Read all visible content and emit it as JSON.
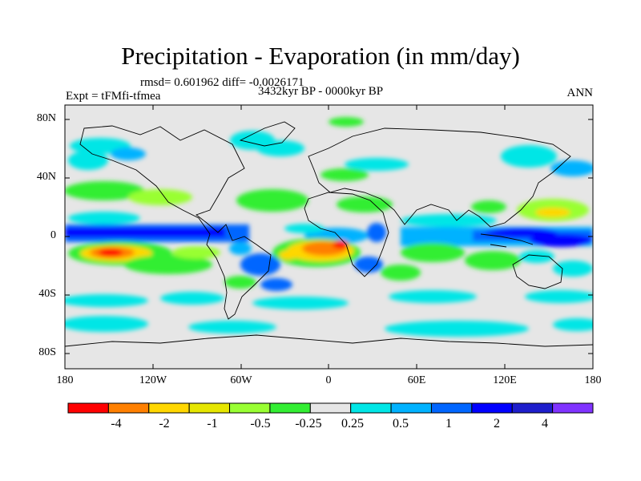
{
  "title": "Precipitation - Evaporation (in mm/day)",
  "stats": "rmsd= 0.601962 diff= -0.0026171",
  "experiment": "Expt = tFMfi-tfmea",
  "period": "3432kyr BP - 0000kyr BP",
  "season": "ANN",
  "lat_ticks": [
    "80N",
    "40N",
    "0",
    "40S",
    "80S"
  ],
  "lon_ticks": [
    "180",
    "120W",
    "60W",
    "0",
    "60E",
    "120E",
    "180"
  ],
  "colorbar": {
    "colors": [
      "#ff0000",
      "#ff8000",
      "#ffd700",
      "#e6e600",
      "#99ff33",
      "#33ee33",
      "#e6e6e6",
      "#00e6e6",
      "#00b2ff",
      "#0066ff",
      "#0000ff",
      "#1e1ecc",
      "#8033ff"
    ],
    "labels": [
      "-4",
      "-2",
      "-1",
      "-0.5",
      "-0.25",
      "0.25",
      "0.5",
      "1",
      "2",
      "4"
    ]
  },
  "colors": {
    "background_land": "#e6e6e6",
    "coast": "#000000"
  },
  "map": {
    "lon_range": [
      -180,
      180
    ],
    "lat_range": [
      -90,
      90
    ],
    "regions": [
      {
        "name": "eq-pacific-blue-band",
        "color": "#0066ff",
        "lon": [
          -180,
          -80
        ],
        "lat": [
          -2,
          8
        ]
      },
      {
        "name": "eq-indian-blue-band",
        "color": "#0066ff",
        "lon": [
          50,
          180
        ],
        "lat": [
          -5,
          6
        ]
      },
      {
        "name": "north-pacific-green",
        "color": "#33ee33",
        "lon": [
          -170,
          -120
        ],
        "lat": [
          15,
          30
        ]
      },
      {
        "name": "south-pacific-dry-red",
        "color": "#ff0000",
        "lon": [
          -150,
          -130
        ],
        "lat": [
          -12,
          -5
        ]
      },
      {
        "name": "south-atlantic-dry",
        "color": "#ffd700",
        "lon": [
          -30,
          10
        ],
        "lat": [
          -15,
          -5
        ]
      },
      {
        "name": "southern-ocean-cyan",
        "color": "#00e6e6",
        "lon": [
          -180,
          180
        ],
        "lat": [
          -60,
          -40
        ]
      }
    ]
  }
}
